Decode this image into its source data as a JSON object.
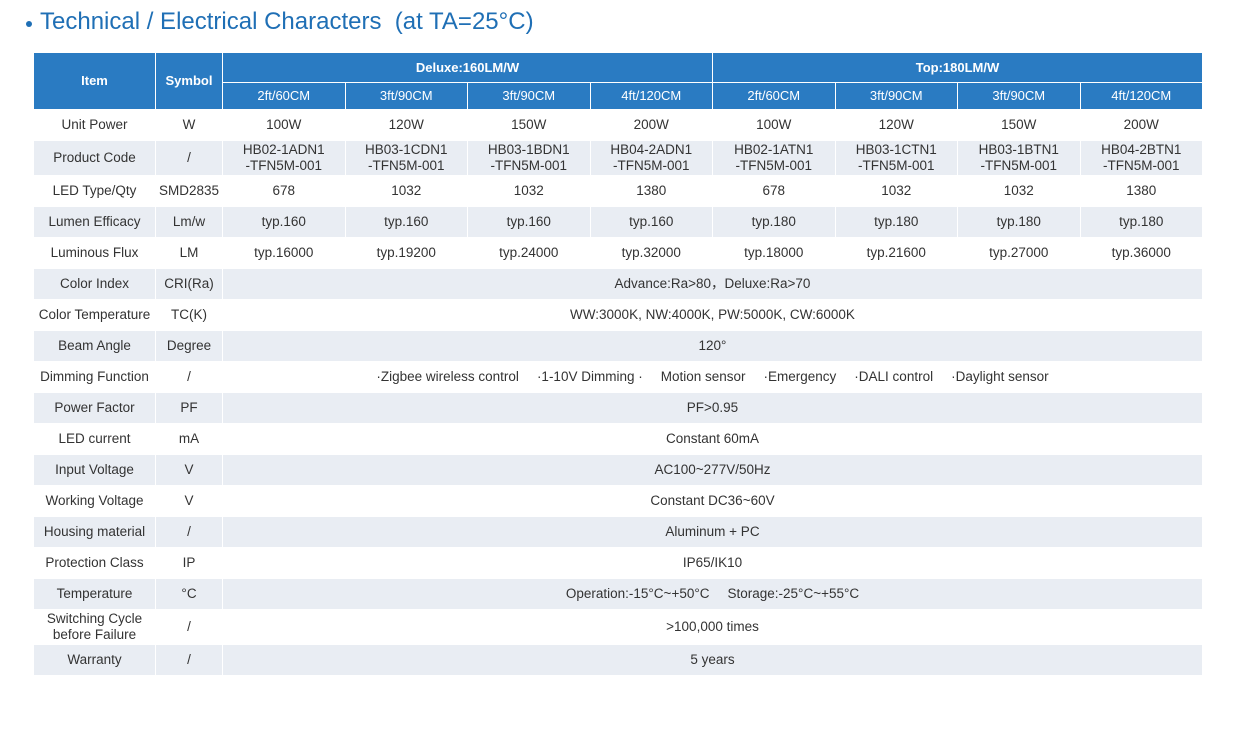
{
  "title": "Technical / Electrical Characters  (at TA=25°C)",
  "table": {
    "header": {
      "item": "Item",
      "symbol": "Symbol",
      "groups": [
        "Deluxe:160LM/W",
        "Top:180LM/W"
      ],
      "models": [
        "2ft/60CM",
        "3ft/90CM",
        "3ft/90CM",
        "4ft/120CM",
        "2ft/60CM",
        "3ft/90CM",
        "3ft/90CM",
        "4ft/120CM"
      ]
    },
    "rows": [
      {
        "item": "Unit  Power",
        "symbol": "W",
        "cells": [
          "100W",
          "120W",
          "150W",
          "200W",
          "100W",
          "120W",
          "150W",
          "200W"
        ]
      },
      {
        "item": "Product Code",
        "symbol": "/",
        "cells": [
          [
            "HB02-1ADN1",
            "-TFN5M-001"
          ],
          [
            "HB03-1CDN1",
            "-TFN5M-001"
          ],
          [
            "HB03-1BDN1",
            "-TFN5M-001"
          ],
          [
            "HB04-2ADN1",
            "-TFN5M-001"
          ],
          [
            "HB02-1ATN1",
            "-TFN5M-001"
          ],
          [
            "HB03-1CTN1",
            "-TFN5M-001"
          ],
          [
            "HB03-1BTN1",
            "-TFN5M-001"
          ],
          [
            "HB04-2BTN1",
            "-TFN5M-001"
          ]
        ]
      },
      {
        "item": "LED Type/Qty",
        "symbol": "SMD2835",
        "cells": [
          678,
          1032,
          1032,
          1380,
          678,
          1032,
          1032,
          1380
        ]
      },
      {
        "item": "Lumen Efficacy",
        "symbol": "Lm/w",
        "cells": [
          "typ.160",
          "typ.160",
          "typ.160",
          "typ.160",
          "typ.180",
          "typ.180",
          "typ.180",
          "typ.180"
        ]
      },
      {
        "item": "Luminous Flux",
        "symbol": "LM",
        "cells": [
          "typ.16000",
          "typ.19200",
          "typ.24000",
          "typ.32000",
          "typ.18000",
          "typ.21600",
          "typ.27000",
          "typ.36000"
        ]
      },
      {
        "item": "Color Index",
        "symbol": "CRI(Ra)",
        "span": "Advance:Ra>80，Deluxe:Ra>70"
      },
      {
        "item": "Color Temperature",
        "symbol": "TC(K)",
        "span": "WW:3000K, NW:4000K, PW:5000K, CW:6000K"
      },
      {
        "item": "Beam Angle",
        "symbol": "Degree",
        "span": "120°"
      },
      {
        "item": "Dimming Function",
        "symbol": "/",
        "span": [
          "·Zigbee wireless control",
          "·1-10V Dimming ·",
          "Motion sensor",
          "·Emergency",
          "·DALI control",
          "·Daylight sensor"
        ]
      },
      {
        "item": "Power Factor",
        "symbol": "PF",
        "span": "PF>0.95"
      },
      {
        "item": "LED current",
        "symbol": "mA",
        "span": "Constant 60mA"
      },
      {
        "item": "Input Voltage",
        "symbol": "V",
        "span": "AC100~277V/50Hz"
      },
      {
        "item": "Working Voltage",
        "symbol": "V",
        "span": "Constant DC36~60V"
      },
      {
        "item": "Housing material",
        "symbol": "/",
        "span": "Aluminum + PC"
      },
      {
        "item": "Protection Class",
        "symbol": "IP",
        "span": "IP65/IK10"
      },
      {
        "item": "Temperature",
        "symbol": "°C",
        "span": [
          "Operation:-15°C~+50°C",
          "Storage:-25°C~+55°C"
        ]
      },
      {
        "item": [
          "Switching Cycle",
          "before Failure"
        ],
        "symbol": "/",
        "span": ">100,000 times"
      },
      {
        "item": "Warranty",
        "symbol": "/",
        "span": "5 years"
      }
    ]
  }
}
